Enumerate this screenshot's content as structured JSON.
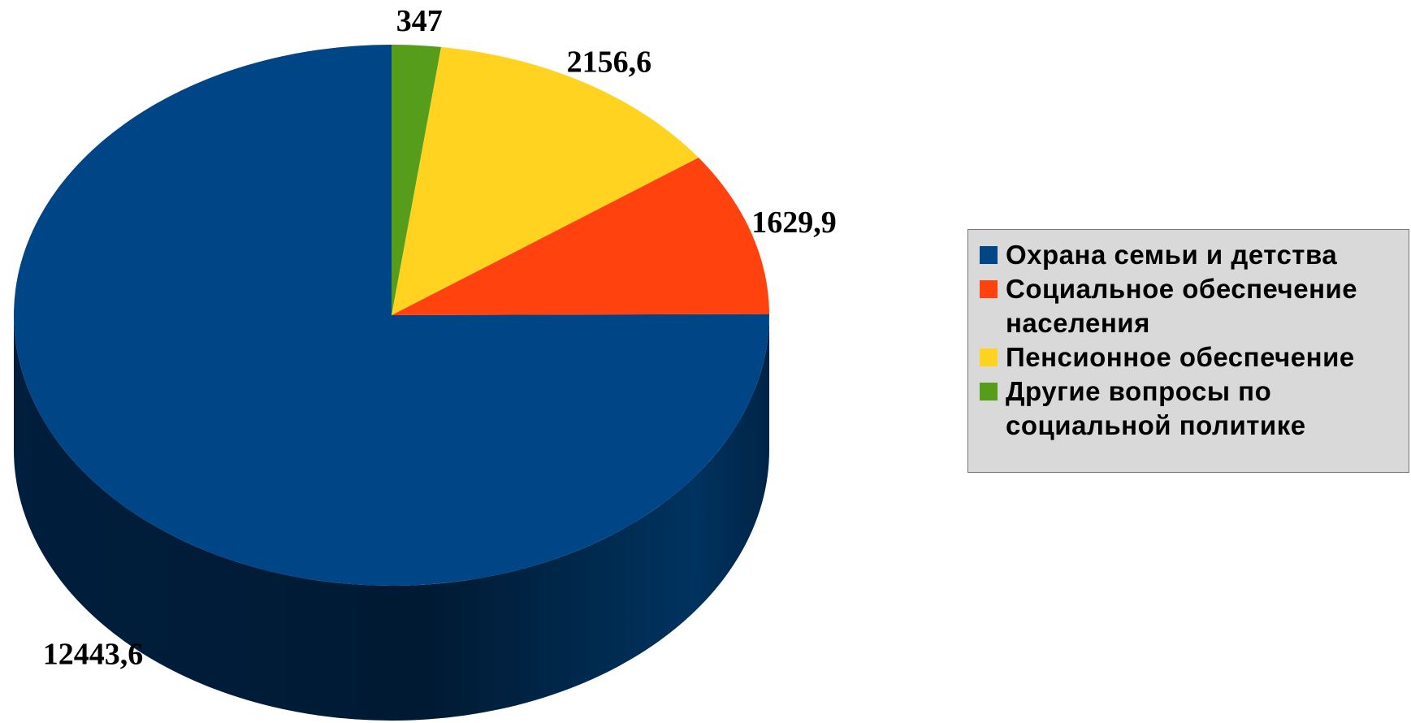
{
  "chart_data": {
    "type": "pie",
    "categories": [
      "Охрана семьи и детства",
      "Социальное обеспечение населения",
      "Пенсионное обеспечение",
      "Другие вопросы по социальной политике"
    ],
    "values": [
      12443.6,
      1629.9,
      2156.6,
      347
    ],
    "value_labels": [
      "12443,6",
      "1629,9",
      "2156,6",
      "347"
    ],
    "colors": [
      "#004586",
      "#ff420e",
      "#ffd320",
      "#579d1c"
    ],
    "legend": "right"
  }
}
